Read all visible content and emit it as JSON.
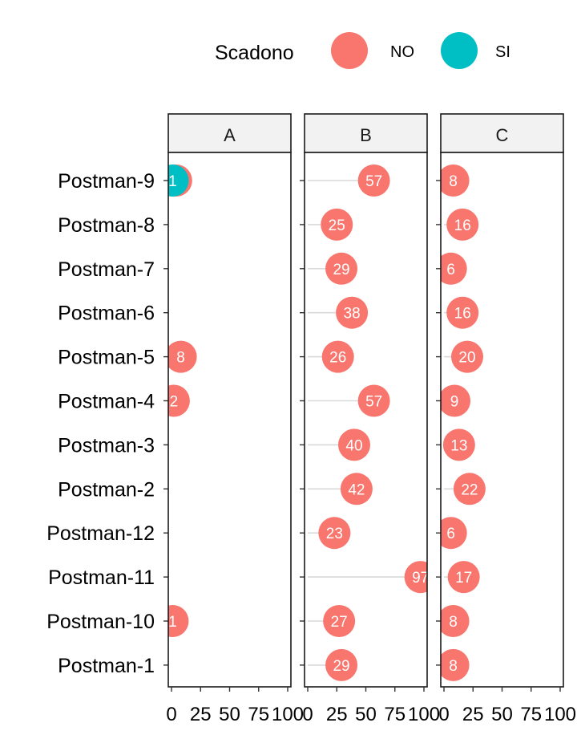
{
  "chart_data": {
    "type": "dot",
    "legend": {
      "title": "Scadono",
      "position": "top",
      "entries": [
        {
          "label": "NO",
          "color": "#F8766D"
        },
        {
          "label": "SI",
          "color": "#00BFC4"
        }
      ]
    },
    "categories": [
      "Postman-9",
      "Postman-8",
      "Postman-7",
      "Postman-6",
      "Postman-5",
      "Postman-4",
      "Postman-3",
      "Postman-2",
      "Postman-12",
      "Postman-11",
      "Postman-10",
      "Postman-1"
    ],
    "xlim": [
      0,
      100
    ],
    "xticks": [
      "0",
      "25",
      "50",
      "75",
      "100"
    ],
    "facets": [
      {
        "name": "A",
        "points": [
          {
            "category": "Postman-9",
            "group": "NO",
            "value": 4,
            "label": "4"
          },
          {
            "category": "Postman-9",
            "group": "SI",
            "value": 1,
            "label": "1"
          },
          {
            "category": "Postman-5",
            "group": "NO",
            "value": 8,
            "label": "8"
          },
          {
            "category": "Postman-4",
            "group": "NO",
            "value": 2,
            "label": "2"
          },
          {
            "category": "Postman-10",
            "group": "NO",
            "value": 1,
            "label": "1"
          }
        ]
      },
      {
        "name": "B",
        "points": [
          {
            "category": "Postman-9",
            "group": "NO",
            "value": 57,
            "label": "57"
          },
          {
            "category": "Postman-8",
            "group": "NO",
            "value": 25,
            "label": "25"
          },
          {
            "category": "Postman-7",
            "group": "NO",
            "value": 29,
            "label": "29"
          },
          {
            "category": "Postman-6",
            "group": "NO",
            "value": 38,
            "label": "38"
          },
          {
            "category": "Postman-5",
            "group": "NO",
            "value": 26,
            "label": "26"
          },
          {
            "category": "Postman-4",
            "group": "NO",
            "value": 57,
            "label": "57"
          },
          {
            "category": "Postman-3",
            "group": "NO",
            "value": 40,
            "label": "40"
          },
          {
            "category": "Postman-2",
            "group": "NO",
            "value": 42,
            "label": "42"
          },
          {
            "category": "Postman-12",
            "group": "NO",
            "value": 23,
            "label": "23"
          },
          {
            "category": "Postman-11",
            "group": "NO",
            "value": 97,
            "label": "97"
          },
          {
            "category": "Postman-10",
            "group": "NO",
            "value": 27,
            "label": "27"
          },
          {
            "category": "Postman-1",
            "group": "NO",
            "value": 29,
            "label": "29"
          }
        ]
      },
      {
        "name": "C",
        "points": [
          {
            "category": "Postman-9",
            "group": "NO",
            "value": 8,
            "label": "8"
          },
          {
            "category": "Postman-8",
            "group": "NO",
            "value": 16,
            "label": "16"
          },
          {
            "category": "Postman-7",
            "group": "NO",
            "value": 6,
            "label": "6"
          },
          {
            "category": "Postman-6",
            "group": "NO",
            "value": 16,
            "label": "16"
          },
          {
            "category": "Postman-5",
            "group": "NO",
            "value": 20,
            "label": "20"
          },
          {
            "category": "Postman-4",
            "group": "NO",
            "value": 9,
            "label": "9"
          },
          {
            "category": "Postman-3",
            "group": "NO",
            "value": 13,
            "label": "13"
          },
          {
            "category": "Postman-2",
            "group": "NO",
            "value": 22,
            "label": "22"
          },
          {
            "category": "Postman-12",
            "group": "NO",
            "value": 6,
            "label": "6"
          },
          {
            "category": "Postman-11",
            "group": "NO",
            "value": 17,
            "label": "17"
          },
          {
            "category": "Postman-10",
            "group": "NO",
            "value": 8,
            "label": "8"
          },
          {
            "category": "Postman-1",
            "group": "NO",
            "value": 8,
            "label": "8"
          }
        ]
      }
    ]
  }
}
